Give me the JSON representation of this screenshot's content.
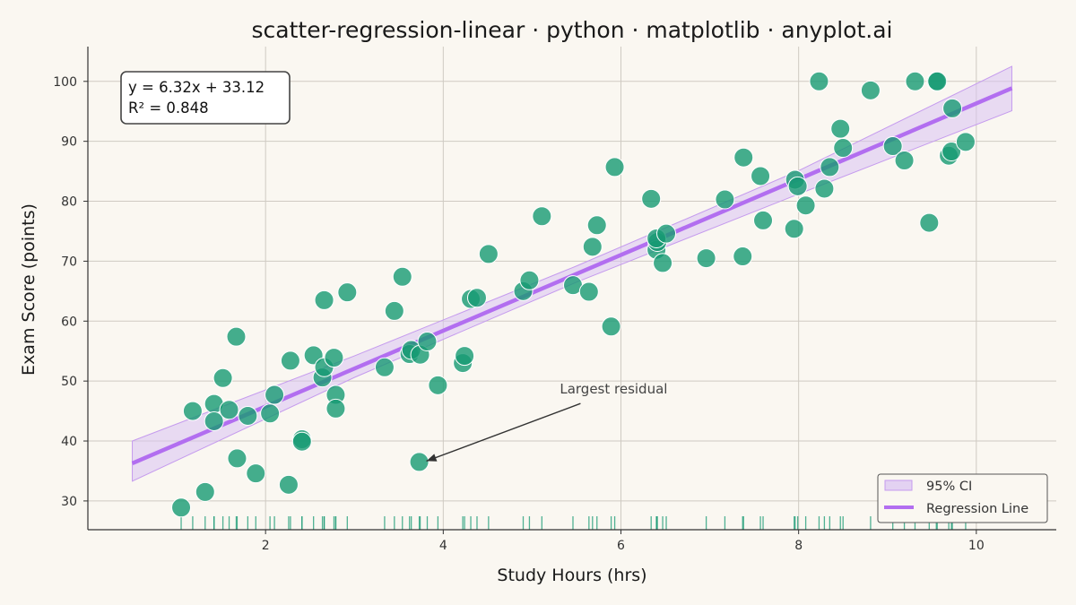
{
  "chart_data": {
    "type": "scatter",
    "title": "scatter-regression-linear · python · matplotlib · anyplot.ai",
    "xlabel": "Study Hours (hrs)",
    "ylabel": "Exam Score (points)",
    "xlim": [
      0.0,
      10.9
    ],
    "ylim": [
      25.2,
      105.8
    ],
    "xticks": [
      2,
      4,
      6,
      8,
      10
    ],
    "yticks": [
      30,
      40,
      50,
      60,
      70,
      80,
      90,
      100
    ],
    "grid": true,
    "legend_position": "lower-right",
    "colors": {
      "points": "#179A73",
      "line": "#B26EF0",
      "band": "#D9C2F2",
      "rug": "#179A73",
      "background": "#FAF7F1"
    },
    "equation": {
      "line1": "y = 6.32x + 33.12",
      "line2": "R² = 0.848"
    },
    "regression": {
      "slope": 6.32,
      "intercept": 33.12,
      "x_range": [
        0.5,
        10.4
      ]
    },
    "ci_band": [
      {
        "x": 0.5,
        "lower": 33.3,
        "upper": 40.0
      },
      {
        "x": 3.0,
        "lower": 50.6,
        "upper": 54.2
      },
      {
        "x": 5.5,
        "lower": 66.5,
        "upper": 69.2
      },
      {
        "x": 8.0,
        "lower": 81.2,
        "upper": 85.1
      },
      {
        "x": 10.4,
        "lower": 95.1,
        "upper": 102.5
      }
    ],
    "legend": [
      {
        "label": "95% CI",
        "kind": "band"
      },
      {
        "label": "Regression Line",
        "kind": "line"
      }
    ],
    "annotation": {
      "text": "Largest residual",
      "point": {
        "x": 3.73,
        "y": 36.5
      },
      "text_at": {
        "x": 6.1,
        "y": 47
      }
    },
    "points": [
      {
        "x": 1.05,
        "y": 28.9
      },
      {
        "x": 1.18,
        "y": 45.0
      },
      {
        "x": 1.32,
        "y": 31.5
      },
      {
        "x": 1.42,
        "y": 46.2
      },
      {
        "x": 1.42,
        "y": 43.3
      },
      {
        "x": 1.52,
        "y": 50.5
      },
      {
        "x": 1.59,
        "y": 45.2
      },
      {
        "x": 1.67,
        "y": 57.4
      },
      {
        "x": 1.68,
        "y": 37.1
      },
      {
        "x": 1.8,
        "y": 44.2
      },
      {
        "x": 1.89,
        "y": 34.6
      },
      {
        "x": 2.05,
        "y": 44.6
      },
      {
        "x": 2.1,
        "y": 47.7
      },
      {
        "x": 2.26,
        "y": 32.7
      },
      {
        "x": 2.28,
        "y": 53.4
      },
      {
        "x": 2.41,
        "y": 40.3
      },
      {
        "x": 2.41,
        "y": 39.9
      },
      {
        "x": 2.54,
        "y": 54.3
      },
      {
        "x": 2.64,
        "y": 50.6
      },
      {
        "x": 2.66,
        "y": 52.3
      },
      {
        "x": 2.66,
        "y": 63.5
      },
      {
        "x": 2.77,
        "y": 53.9
      },
      {
        "x": 2.79,
        "y": 47.7
      },
      {
        "x": 2.79,
        "y": 45.4
      },
      {
        "x": 2.92,
        "y": 64.8
      },
      {
        "x": 3.34,
        "y": 52.3
      },
      {
        "x": 3.45,
        "y": 61.7
      },
      {
        "x": 3.54,
        "y": 67.4
      },
      {
        "x": 3.62,
        "y": 54.5
      },
      {
        "x": 3.64,
        "y": 55.2
      },
      {
        "x": 3.74,
        "y": 54.4
      },
      {
        "x": 3.73,
        "y": 36.5
      },
      {
        "x": 3.82,
        "y": 56.6
      },
      {
        "x": 3.94,
        "y": 49.3
      },
      {
        "x": 4.22,
        "y": 53.0
      },
      {
        "x": 4.24,
        "y": 54.2
      },
      {
        "x": 4.31,
        "y": 63.7
      },
      {
        "x": 4.38,
        "y": 63.9
      },
      {
        "x": 4.51,
        "y": 71.2
      },
      {
        "x": 4.9,
        "y": 65.0
      },
      {
        "x": 4.97,
        "y": 66.8
      },
      {
        "x": 5.11,
        "y": 77.5
      },
      {
        "x": 5.46,
        "y": 66.0
      },
      {
        "x": 5.64,
        "y": 64.9
      },
      {
        "x": 5.68,
        "y": 72.4
      },
      {
        "x": 5.73,
        "y": 76.0
      },
      {
        "x": 5.89,
        "y": 59.1
      },
      {
        "x": 5.93,
        "y": 85.7
      },
      {
        "x": 6.34,
        "y": 80.4
      },
      {
        "x": 6.4,
        "y": 71.9
      },
      {
        "x": 6.41,
        "y": 73.2
      },
      {
        "x": 6.4,
        "y": 73.8
      },
      {
        "x": 6.47,
        "y": 69.7
      },
      {
        "x": 6.51,
        "y": 74.6
      },
      {
        "x": 6.96,
        "y": 70.5
      },
      {
        "x": 7.17,
        "y": 80.3
      },
      {
        "x": 7.37,
        "y": 70.8
      },
      {
        "x": 7.38,
        "y": 87.3
      },
      {
        "x": 7.57,
        "y": 84.2
      },
      {
        "x": 7.6,
        "y": 76.8
      },
      {
        "x": 7.95,
        "y": 75.4
      },
      {
        "x": 7.96,
        "y": 83.6
      },
      {
        "x": 7.99,
        "y": 82.5
      },
      {
        "x": 8.08,
        "y": 79.3
      },
      {
        "x": 8.23,
        "y": 100.0
      },
      {
        "x": 8.29,
        "y": 82.1
      },
      {
        "x": 8.35,
        "y": 85.7
      },
      {
        "x": 8.47,
        "y": 92.1
      },
      {
        "x": 8.5,
        "y": 88.9
      },
      {
        "x": 8.81,
        "y": 98.5
      },
      {
        "x": 9.06,
        "y": 89.2
      },
      {
        "x": 9.19,
        "y": 86.8
      },
      {
        "x": 9.31,
        "y": 100.0
      },
      {
        "x": 9.47,
        "y": 76.4
      },
      {
        "x": 9.55,
        "y": 100.0
      },
      {
        "x": 9.56,
        "y": 100.0
      },
      {
        "x": 9.69,
        "y": 87.6
      },
      {
        "x": 9.72,
        "y": 88.3
      },
      {
        "x": 9.73,
        "y": 95.5
      },
      {
        "x": 9.88,
        "y": 89.9
      }
    ]
  }
}
